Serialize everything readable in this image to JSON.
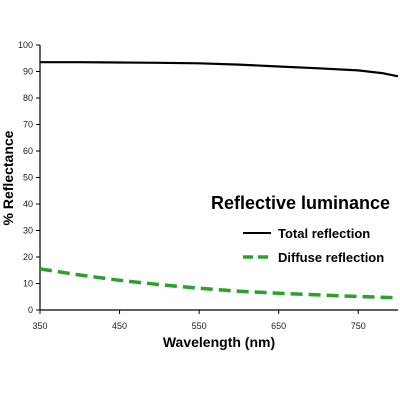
{
  "chart_data": {
    "type": "line",
    "title": "",
    "xlabel": "Wavelength (nm)",
    "ylabel": "% Reflectance",
    "xlim": [
      350,
      800
    ],
    "ylim": [
      0,
      100
    ],
    "x_ticks": [
      350,
      450,
      550,
      650,
      750
    ],
    "y_ticks": [
      0,
      10,
      20,
      30,
      40,
      50,
      60,
      70,
      80,
      90,
      100
    ],
    "grid": false,
    "legend": {
      "title": "Reflective luminance",
      "placement": "right"
    },
    "series": [
      {
        "name": "Total reflection",
        "color": "#000000",
        "style": "solid",
        "x": [
          350,
          400,
          450,
          500,
          550,
          600,
          650,
          700,
          750,
          780,
          800
        ],
        "y": [
          93.5,
          93.5,
          93.4,
          93.3,
          93.1,
          92.6,
          91.9,
          91.2,
          90.4,
          89.4,
          88.2
        ]
      },
      {
        "name": "Diffuse reflection",
        "color": "#2ca02c",
        "style": "dashed",
        "x": [
          350,
          400,
          450,
          500,
          550,
          600,
          650,
          700,
          750,
          800
        ],
        "y": [
          15.5,
          13.2,
          11.2,
          9.6,
          8.2,
          7.1,
          6.3,
          5.7,
          5.1,
          4.6
        ]
      }
    ]
  }
}
